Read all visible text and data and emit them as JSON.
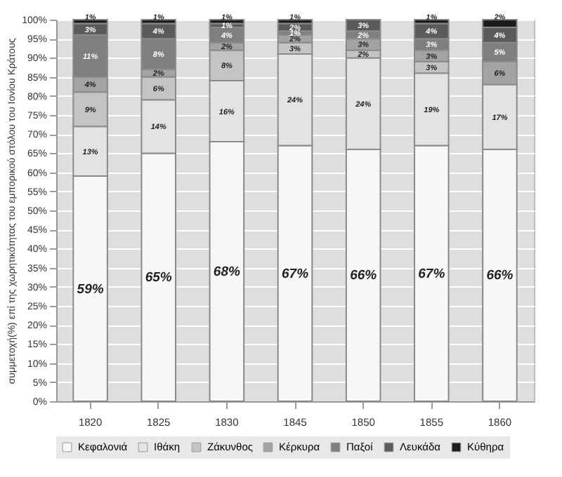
{
  "chart_data": {
    "type": "bar",
    "stacked": true,
    "ylabel": "συμμετοχή(%) επί της χωρητικότητας του εμπορικού στόλου του Ιονίου Κράτους",
    "categories": [
      "1820",
      "1825",
      "1830",
      "1845",
      "1850",
      "1855",
      "1860"
    ],
    "series": [
      {
        "name": "Κεφαλονιά",
        "color": "#f7f7f7",
        "values": [
          59,
          65,
          68,
          67,
          66,
          67,
          66
        ],
        "value_labels": [
          "59%",
          "65%",
          "68%",
          "67%",
          "66%",
          "67%",
          "66%"
        ]
      },
      {
        "name": "Ιθάκη",
        "color": "#e3e3e3",
        "values": [
          13,
          14,
          16,
          24,
          24,
          19,
          17
        ],
        "value_labels": [
          "13%",
          "14%",
          "16%",
          "24%",
          "24%",
          "19%",
          "17%"
        ]
      },
      {
        "name": "Ζάκυνθος",
        "color": "#c4c4c4",
        "values": [
          9,
          6,
          8,
          3,
          2,
          3,
          null
        ],
        "value_labels": [
          "9%",
          "6%",
          "8%",
          "3%",
          "2%",
          "3%",
          null
        ]
      },
      {
        "name": "Κέρκυρα",
        "color": "#a3a3a3",
        "values": [
          4,
          2,
          2,
          2,
          3,
          3,
          6
        ],
        "value_labels": [
          "4%",
          "2%",
          "2%",
          "2%",
          "3%",
          "3%",
          "6%"
        ]
      },
      {
        "name": "Παξοί",
        "color": "#7f7f7f",
        "values": [
          11,
          8,
          4,
          1,
          2,
          3,
          5
        ],
        "value_labels": [
          "11%",
          "8%",
          "4%",
          "1%",
          "2%",
          "3%",
          "5%"
        ]
      },
      {
        "name": "Λευκάδα",
        "color": "#5a5a5a",
        "values": [
          3,
          4,
          1,
          2,
          3,
          4,
          4
        ],
        "value_labels": [
          "3%",
          "4%",
          "1%",
          "2%",
          "3%",
          "4%",
          "4%"
        ]
      },
      {
        "name": "Κύθηρα",
        "color": "#1c1c1c",
        "values": [
          1,
          1,
          1,
          1,
          null,
          1,
          2
        ],
        "value_labels": [
          "1%",
          "1%",
          "1%",
          "1%",
          null,
          "1%",
          "2%"
        ]
      }
    ],
    "ylim": [
      0,
      100
    ],
    "yticks": [
      {
        "value": 0,
        "label": "0%"
      },
      {
        "value": 5,
        "label": "5%"
      },
      {
        "value": 10,
        "label": "10%"
      },
      {
        "value": 15,
        "label": "15%"
      },
      {
        "value": 20,
        "label": "20%"
      },
      {
        "value": 25,
        "label": "25%"
      },
      {
        "value": 30,
        "label": "30%"
      },
      {
        "value": 35,
        "label": "35%"
      },
      {
        "value": 40,
        "label": "40%"
      },
      {
        "value": 45,
        "label": "45%"
      },
      {
        "value": 50,
        "label": "50%"
      },
      {
        "value": 55,
        "label": "55%"
      },
      {
        "value": 60,
        "label": "60%"
      },
      {
        "value": 65,
        "label": "65%"
      },
      {
        "value": 70,
        "label": "70%"
      },
      {
        "value": 75,
        "label": "75%"
      },
      {
        "value": 80,
        "label": "80%"
      },
      {
        "value": 85,
        "label": "85%"
      },
      {
        "value": 90,
        "label": "90%"
      },
      {
        "value": 95,
        "label": "95%"
      },
      {
        "value": 100,
        "label": "100%"
      }
    ],
    "grid": "y",
    "legend": "bottom"
  }
}
